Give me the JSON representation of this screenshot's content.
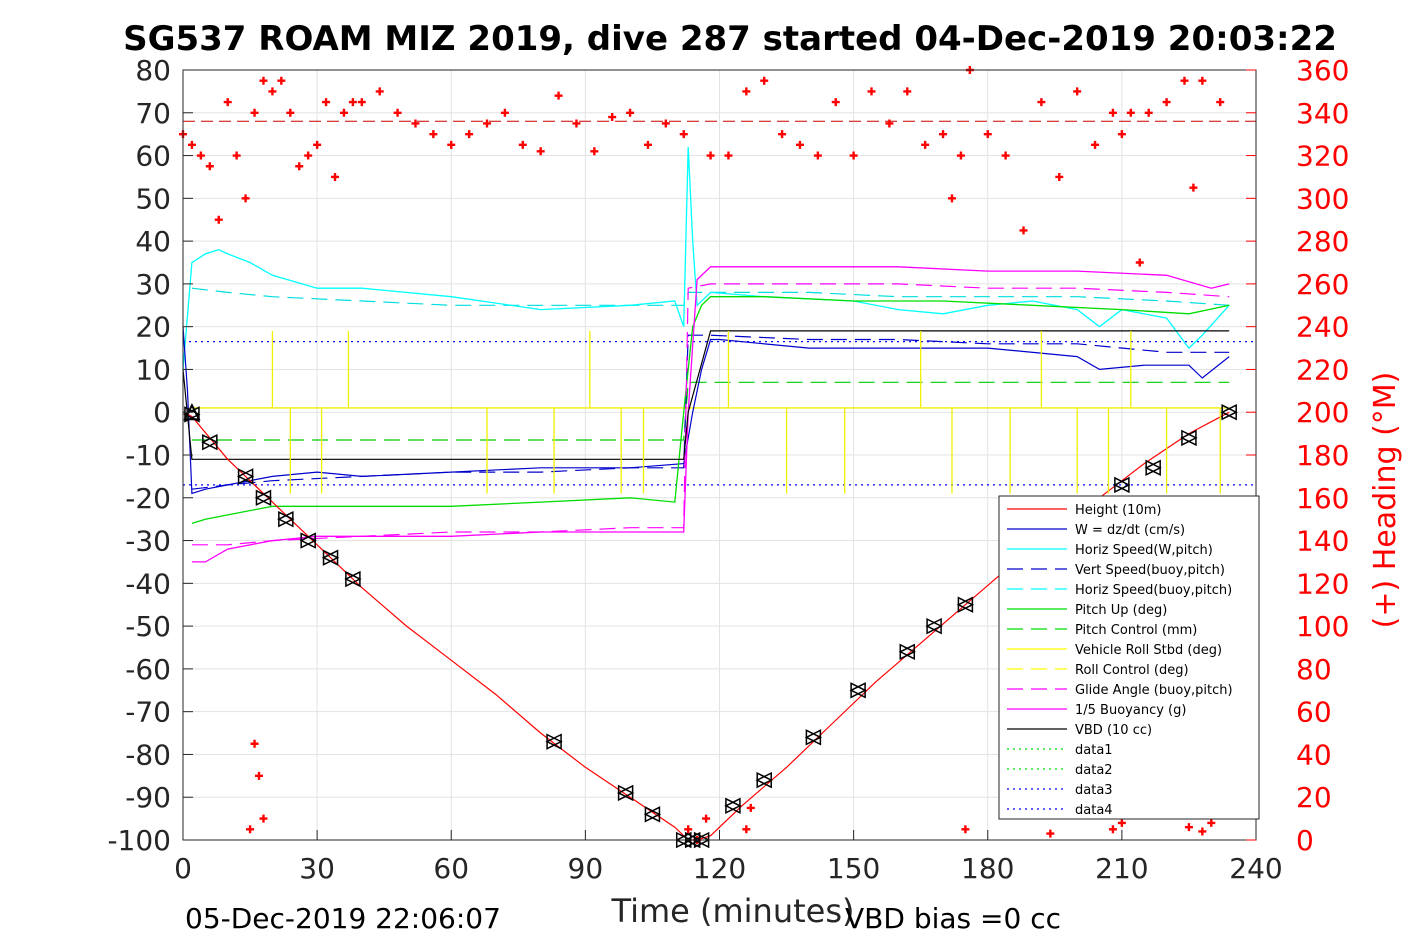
{
  "chart_data": {
    "type": "line",
    "title": "SG537 ROAM MIZ 2019, dive 287 started 04-Dec-2019 20:03:22",
    "xlabel": "Time (minutes)",
    "ylabel_right": "(+) Heading (°M)",
    "footer_left": "05-Dec-2019 22:06:07",
    "footer_right": "VBD bias =0 cc",
    "xlim": [
      0,
      240
    ],
    "ylim": [
      -100,
      80
    ],
    "ylim_right": [
      0,
      360
    ],
    "x_ticks": [
      0,
      30,
      60,
      90,
      120,
      150,
      180,
      210,
      240
    ],
    "y_ticks": [
      80,
      70,
      60,
      50,
      40,
      30,
      20,
      10,
      0,
      -10,
      -20,
      -30,
      -40,
      -50,
      -60,
      -70,
      -80,
      -90,
      -100
    ],
    "y_ticks_right": [
      360,
      340,
      320,
      300,
      280,
      260,
      240,
      220,
      200,
      180,
      160,
      140,
      120,
      100,
      80,
      60,
      40,
      20,
      0
    ],
    "grid": true,
    "legend_position": "lower-right",
    "colors": {
      "height": "#ff0000",
      "w": "#0000cc",
      "horiz_speed": "#00ffff",
      "pitch": "#00dd00",
      "roll": "#ffff00",
      "buoyancy": "#ff00ff",
      "vbd": "#000000",
      "heading": "#ff0000",
      "data3": "#0000ff",
      "data1": "#00dd00"
    },
    "legend": [
      {
        "label": "Height (10m)",
        "color": "#ff0000",
        "dash": "solid"
      },
      {
        "label": "W = dz/dt (cm/s)",
        "color": "#0000cc",
        "dash": "solid"
      },
      {
        "label": "Horiz Speed(W,pitch)",
        "color": "#00ffff",
        "dash": "solid"
      },
      {
        "label": "Vert Speed(buoy,pitch)",
        "color": "#0000cc",
        "dash": "dashed"
      },
      {
        "label": "Horiz Speed(buoy,pitch)",
        "color": "#00ffff",
        "dash": "dashed"
      },
      {
        "label": "Pitch Up (deg)",
        "color": "#00dd00",
        "dash": "solid"
      },
      {
        "label": "Pitch Control (mm)",
        "color": "#00dd00",
        "dash": "dashed"
      },
      {
        "label": "Vehicle Roll Stbd (deg)",
        "color": "#ffff00",
        "dash": "solid"
      },
      {
        "label": "Roll Control (deg)",
        "color": "#ffff00",
        "dash": "dashed"
      },
      {
        "label": "Glide Angle (buoy,pitch)",
        "color": "#ff00ff",
        "dash": "dashed"
      },
      {
        "label": "1/5 Buoyancy (g)",
        "color": "#ff00ff",
        "dash": "solid"
      },
      {
        "label": "VBD (10 cc)",
        "color": "#000000",
        "dash": "solid"
      },
      {
        "label": "data1",
        "color": "#00dd00",
        "dash": "dotted"
      },
      {
        "label": "data2",
        "color": "#00dd00",
        "dash": "dotted"
      },
      {
        "label": "data3",
        "color": "#0000ff",
        "dash": "dotted"
      },
      {
        "label": "data4",
        "color": "#0000ff",
        "dash": "dotted"
      }
    ],
    "series": [
      {
        "key": "height",
        "x": [
          0,
          2,
          10,
          20,
          30,
          40,
          50,
          60,
          70,
          80,
          90,
          100,
          110,
          113,
          115,
          118,
          125,
          135,
          145,
          155,
          165,
          175,
          185,
          195,
          205,
          215,
          225,
          234
        ],
        "y": [
          0,
          -1,
          -11,
          -21,
          -31,
          -41,
          -50,
          -58,
          -66,
          -75,
          -83,
          -90,
          -97,
          -100,
          -100,
          -99,
          -92,
          -83,
          -73,
          -63,
          -54,
          -45,
          -36,
          -27,
          -20,
          -12,
          -5,
          0
        ]
      },
      {
        "key": "w",
        "x": [
          0,
          1,
          2,
          5,
          10,
          20,
          30,
          40,
          60,
          80,
          100,
          112,
          114,
          116,
          118,
          120,
          140,
          160,
          180,
          200,
          205,
          215,
          225,
          228,
          234
        ],
        "y": [
          20,
          5,
          -19,
          -18,
          -17,
          -15,
          -14,
          -15,
          -14,
          -13,
          -13,
          -12,
          0,
          10,
          17,
          17,
          15,
          15,
          15,
          13,
          10,
          11,
          11,
          8,
          13
        ]
      },
      {
        "key": "horiz_speed",
        "x": [
          0,
          2,
          5,
          8,
          10,
          15,
          20,
          30,
          40,
          60,
          80,
          100,
          110,
          112,
          113,
          114,
          115,
          118,
          130,
          150,
          160,
          170,
          180,
          190,
          200,
          205,
          210,
          220,
          225,
          228,
          234
        ],
        "y": [
          10,
          35,
          37,
          38,
          37,
          35,
          32,
          29,
          29,
          27,
          24,
          25,
          26,
          20,
          62,
          40,
          25,
          28,
          27,
          26,
          24,
          23,
          25,
          26,
          24,
          20,
          24,
          22,
          15,
          18,
          25
        ]
      },
      {
        "key": "vert_speed_buoy",
        "x": [
          2,
          10,
          20,
          40,
          60,
          80,
          100,
          112,
          113,
          118,
          140,
          160,
          180,
          200,
          220,
          234
        ],
        "y": [
          -18,
          -17,
          -16,
          -15,
          -14,
          -14,
          -13,
          -13,
          18,
          18,
          17,
          17,
          16,
          16,
          14,
          14
        ]
      },
      {
        "key": "horiz_speed_buoy",
        "x": [
          2,
          10,
          20,
          40,
          60,
          80,
          100,
          112,
          113,
          118,
          140,
          160,
          180,
          200,
          220,
          234
        ],
        "y": [
          29,
          28,
          27,
          26,
          25,
          25,
          25,
          25,
          28,
          28,
          28,
          27,
          27,
          27,
          26,
          25
        ]
      },
      {
        "key": "pitch",
        "x": [
          2,
          5,
          10,
          20,
          30,
          40,
          60,
          80,
          100,
          110,
          112,
          114,
          116,
          118,
          130,
          150,
          170,
          190,
          210,
          225,
          234
        ],
        "y": [
          -26,
          -25,
          -24,
          -22,
          -22,
          -22,
          -22,
          -21,
          -20,
          -21,
          0,
          20,
          25,
          27,
          27,
          26,
          26,
          25,
          24,
          23,
          25
        ]
      },
      {
        "key": "pitch_control",
        "x": [
          2,
          112,
          113,
          234
        ],
        "y": [
          -6.5,
          -6.5,
          7,
          7
        ]
      },
      {
        "key": "roll",
        "x": [
          2,
          10,
          20,
          30,
          40,
          60,
          80,
          100,
          110,
          112,
          114,
          120,
          140,
          160,
          180,
          200,
          220,
          234
        ],
        "y": [
          1,
          1,
          1,
          1,
          1,
          1,
          1,
          1,
          1,
          1,
          1,
          1,
          1,
          1,
          1,
          1,
          1,
          1
        ]
      },
      {
        "key": "buoyancy",
        "x": [
          2,
          5,
          10,
          20,
          30,
          40,
          60,
          80,
          100,
          112,
          113,
          115,
          118,
          140,
          160,
          180,
          200,
          220,
          230,
          234
        ],
        "y": [
          -35,
          -35,
          -32,
          -30,
          -29,
          -29,
          -29,
          -28,
          -28,
          -28,
          0,
          31,
          34,
          34,
          34,
          33,
          33,
          32,
          29,
          30
        ]
      },
      {
        "key": "glide_angle",
        "x": [
          2,
          10,
          20,
          40,
          60,
          80,
          100,
          112,
          113,
          118,
          140,
          160,
          180,
          200,
          220,
          234
        ],
        "y": [
          -31,
          -31,
          -30,
          -29,
          -28,
          -28,
          -27,
          -27,
          29,
          30,
          30,
          30,
          29,
          29,
          28,
          27
        ]
      },
      {
        "key": "vbd",
        "x": [
          0,
          2,
          112,
          113,
          118,
          234
        ],
        "y": [
          10,
          -11,
          -11,
          0,
          19,
          19
        ]
      },
      {
        "key": "data3",
        "x": [
          0,
          240
        ],
        "y": [
          16.5,
          16.5
        ]
      },
      {
        "key": "data4",
        "x": [
          0,
          240
        ],
        "y": [
          -17,
          -17
        ]
      },
      {
        "key": "heading_ref",
        "x": [
          0,
          240
        ],
        "y": [
          68,
          68
        ]
      }
    ],
    "heading_points": [
      {
        "x": 0,
        "y": 330
      },
      {
        "x": 2,
        "y": 325
      },
      {
        "x": 4,
        "y": 320
      },
      {
        "x": 6,
        "y": 315
      },
      {
        "x": 8,
        "y": 290
      },
      {
        "x": 10,
        "y": 345
      },
      {
        "x": 12,
        "y": 320
      },
      {
        "x": 14,
        "y": 300
      },
      {
        "x": 16,
        "y": 340
      },
      {
        "x": 18,
        "y": 355
      },
      {
        "x": 20,
        "y": 350
      },
      {
        "x": 22,
        "y": 355
      },
      {
        "x": 24,
        "y": 340
      },
      {
        "x": 26,
        "y": 315
      },
      {
        "x": 28,
        "y": 320
      },
      {
        "x": 30,
        "y": 325
      },
      {
        "x": 32,
        "y": 345
      },
      {
        "x": 34,
        "y": 310
      },
      {
        "x": 36,
        "y": 340
      },
      {
        "x": 38,
        "y": 345
      },
      {
        "x": 40,
        "y": 345
      },
      {
        "x": 44,
        "y": 350
      },
      {
        "x": 48,
        "y": 340
      },
      {
        "x": 52,
        "y": 335
      },
      {
        "x": 56,
        "y": 330
      },
      {
        "x": 60,
        "y": 325
      },
      {
        "x": 64,
        "y": 330
      },
      {
        "x": 68,
        "y": 335
      },
      {
        "x": 72,
        "y": 340
      },
      {
        "x": 76,
        "y": 325
      },
      {
        "x": 80,
        "y": 322
      },
      {
        "x": 84,
        "y": 348
      },
      {
        "x": 88,
        "y": 335
      },
      {
        "x": 92,
        "y": 322
      },
      {
        "x": 96,
        "y": 338
      },
      {
        "x": 100,
        "y": 340
      },
      {
        "x": 104,
        "y": 325
      },
      {
        "x": 108,
        "y": 335
      },
      {
        "x": 112,
        "y": 330
      },
      {
        "x": 113,
        "y": 5
      },
      {
        "x": 115,
        "y": 0
      },
      {
        "x": 117,
        "y": 10
      },
      {
        "x": 118,
        "y": 320
      },
      {
        "x": 122,
        "y": 320
      },
      {
        "x": 126,
        "y": 350
      },
      {
        "x": 130,
        "y": 355
      },
      {
        "x": 134,
        "y": 330
      },
      {
        "x": 138,
        "y": 325
      },
      {
        "x": 142,
        "y": 320
      },
      {
        "x": 146,
        "y": 345
      },
      {
        "x": 150,
        "y": 320
      },
      {
        "x": 154,
        "y": 350
      },
      {
        "x": 158,
        "y": 335
      },
      {
        "x": 162,
        "y": 350
      },
      {
        "x": 166,
        "y": 325
      },
      {
        "x": 170,
        "y": 330
      },
      {
        "x": 172,
        "y": 300
      },
      {
        "x": 174,
        "y": 320
      },
      {
        "x": 176,
        "y": 360
      },
      {
        "x": 180,
        "y": 330
      },
      {
        "x": 184,
        "y": 320
      },
      {
        "x": 188,
        "y": 285
      },
      {
        "x": 192,
        "y": 345
      },
      {
        "x": 196,
        "y": 310
      },
      {
        "x": 200,
        "y": 350
      },
      {
        "x": 204,
        "y": 325
      },
      {
        "x": 208,
        "y": 340
      },
      {
        "x": 210,
        "y": 330
      },
      {
        "x": 212,
        "y": 340
      },
      {
        "x": 214,
        "y": 270
      },
      {
        "x": 216,
        "y": 340
      },
      {
        "x": 220,
        "y": 345
      },
      {
        "x": 224,
        "y": 355
      },
      {
        "x": 226,
        "y": 305
      },
      {
        "x": 228,
        "y": 355
      },
      {
        "x": 232,
        "y": 345
      },
      {
        "x": 16,
        "y": 45
      },
      {
        "x": 17,
        "y": 30
      },
      {
        "x": 18,
        "y": 10
      },
      {
        "x": 15,
        "y": 5
      },
      {
        "x": 126,
        "y": 5
      },
      {
        "x": 127,
        "y": 15
      },
      {
        "x": 175,
        "y": 5
      },
      {
        "x": 194,
        "y": 3
      },
      {
        "x": 208,
        "y": 5
      },
      {
        "x": 210,
        "y": 8
      },
      {
        "x": 225,
        "y": 6
      },
      {
        "x": 228,
        "y": 4
      },
      {
        "x": 230,
        "y": 8
      }
    ],
    "markers_down": [
      {
        "x": 2,
        "y": -0.5
      },
      {
        "x": 6,
        "y": -7
      },
      {
        "x": 14,
        "y": -15
      },
      {
        "x": 18,
        "y": -20
      },
      {
        "x": 23,
        "y": -25
      },
      {
        "x": 28,
        "y": -30
      },
      {
        "x": 33,
        "y": -34
      },
      {
        "x": 38,
        "y": -39
      },
      {
        "x": 83,
        "y": -77
      },
      {
        "x": 99,
        "y": -89
      },
      {
        "x": 105,
        "y": -94
      },
      {
        "x": 112,
        "y": -100
      },
      {
        "x": 114,
        "y": -100
      },
      {
        "x": 116,
        "y": -100
      }
    ],
    "markers_up": [
      {
        "x": 123,
        "y": -92
      },
      {
        "x": 130,
        "y": -86
      },
      {
        "x": 141,
        "y": -76
      },
      {
        "x": 151,
        "y": -65
      },
      {
        "x": 162,
        "y": -56
      },
      {
        "x": 168,
        "y": -50
      },
      {
        "x": 175,
        "y": -45
      },
      {
        "x": 210,
        "y": -17
      },
      {
        "x": 217,
        "y": -13
      },
      {
        "x": 225,
        "y": -6
      },
      {
        "x": 234,
        "y": 0
      }
    ]
  }
}
